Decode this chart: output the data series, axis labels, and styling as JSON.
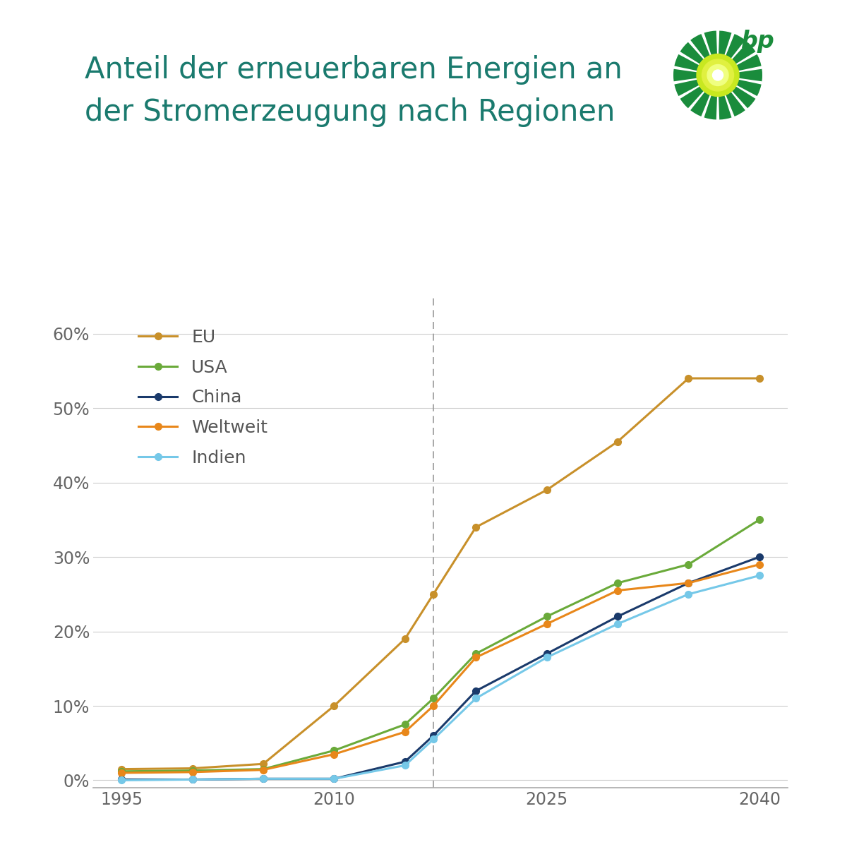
{
  "title_line1": "Anteil der erneuerbaren Energien an",
  "title_line2": "der Stromerzeugung nach Regionen",
  "title_color": "#1a7a6e",
  "background_color": "#ffffff",
  "dashed_line_x": 2017,
  "series": [
    {
      "label": "EU",
      "color": "#c8902a",
      "x": [
        1995,
        2000,
        2005,
        2010,
        2015,
        2017,
        2020,
        2025,
        2030,
        2035,
        2040
      ],
      "y": [
        0.015,
        0.016,
        0.022,
        0.1,
        0.19,
        0.25,
        0.34,
        0.39,
        0.455,
        0.54,
        0.54
      ]
    },
    {
      "label": "USA",
      "color": "#6aaa3a",
      "x": [
        1995,
        2000,
        2005,
        2010,
        2015,
        2017,
        2020,
        2025,
        2030,
        2035,
        2040
      ],
      "y": [
        0.012,
        0.013,
        0.015,
        0.04,
        0.075,
        0.11,
        0.17,
        0.22,
        0.265,
        0.29,
        0.35
      ]
    },
    {
      "label": "China",
      "color": "#1a3a6b",
      "x": [
        1995,
        2000,
        2005,
        2010,
        2015,
        2017,
        2020,
        2025,
        2030,
        2035,
        2040
      ],
      "y": [
        0.001,
        0.001,
        0.002,
        0.002,
        0.025,
        0.06,
        0.12,
        0.17,
        0.22,
        0.265,
        0.3
      ]
    },
    {
      "label": "Weltweit",
      "color": "#e8871a",
      "x": [
        1995,
        2000,
        2005,
        2010,
        2015,
        2017,
        2020,
        2025,
        2030,
        2035,
        2040
      ],
      "y": [
        0.01,
        0.011,
        0.014,
        0.035,
        0.065,
        0.1,
        0.165,
        0.21,
        0.255,
        0.265,
        0.29
      ]
    },
    {
      "label": "Indien",
      "color": "#75c8e8",
      "x": [
        1995,
        2000,
        2005,
        2010,
        2015,
        2017,
        2020,
        2025,
        2030,
        2035,
        2040
      ],
      "y": [
        0.0,
        0.001,
        0.002,
        0.002,
        0.02,
        0.055,
        0.11,
        0.165,
        0.21,
        0.25,
        0.275
      ]
    }
  ],
  "xlim": [
    1993,
    2042
  ],
  "ylim": [
    -0.01,
    0.65
  ],
  "yticks": [
    0.0,
    0.1,
    0.2,
    0.3,
    0.4,
    0.5,
    0.6
  ],
  "ytick_labels": [
    "0%",
    "10%",
    "20%",
    "30%",
    "40%",
    "50%",
    "60%"
  ],
  "xticks": [
    1995,
    2010,
    2025,
    2040
  ],
  "grid_color": "#cccccc",
  "marker_size": 7,
  "line_width": 2.2,
  "legend_fontsize": 18,
  "tick_fontsize": 17,
  "title_fontsize": 30
}
